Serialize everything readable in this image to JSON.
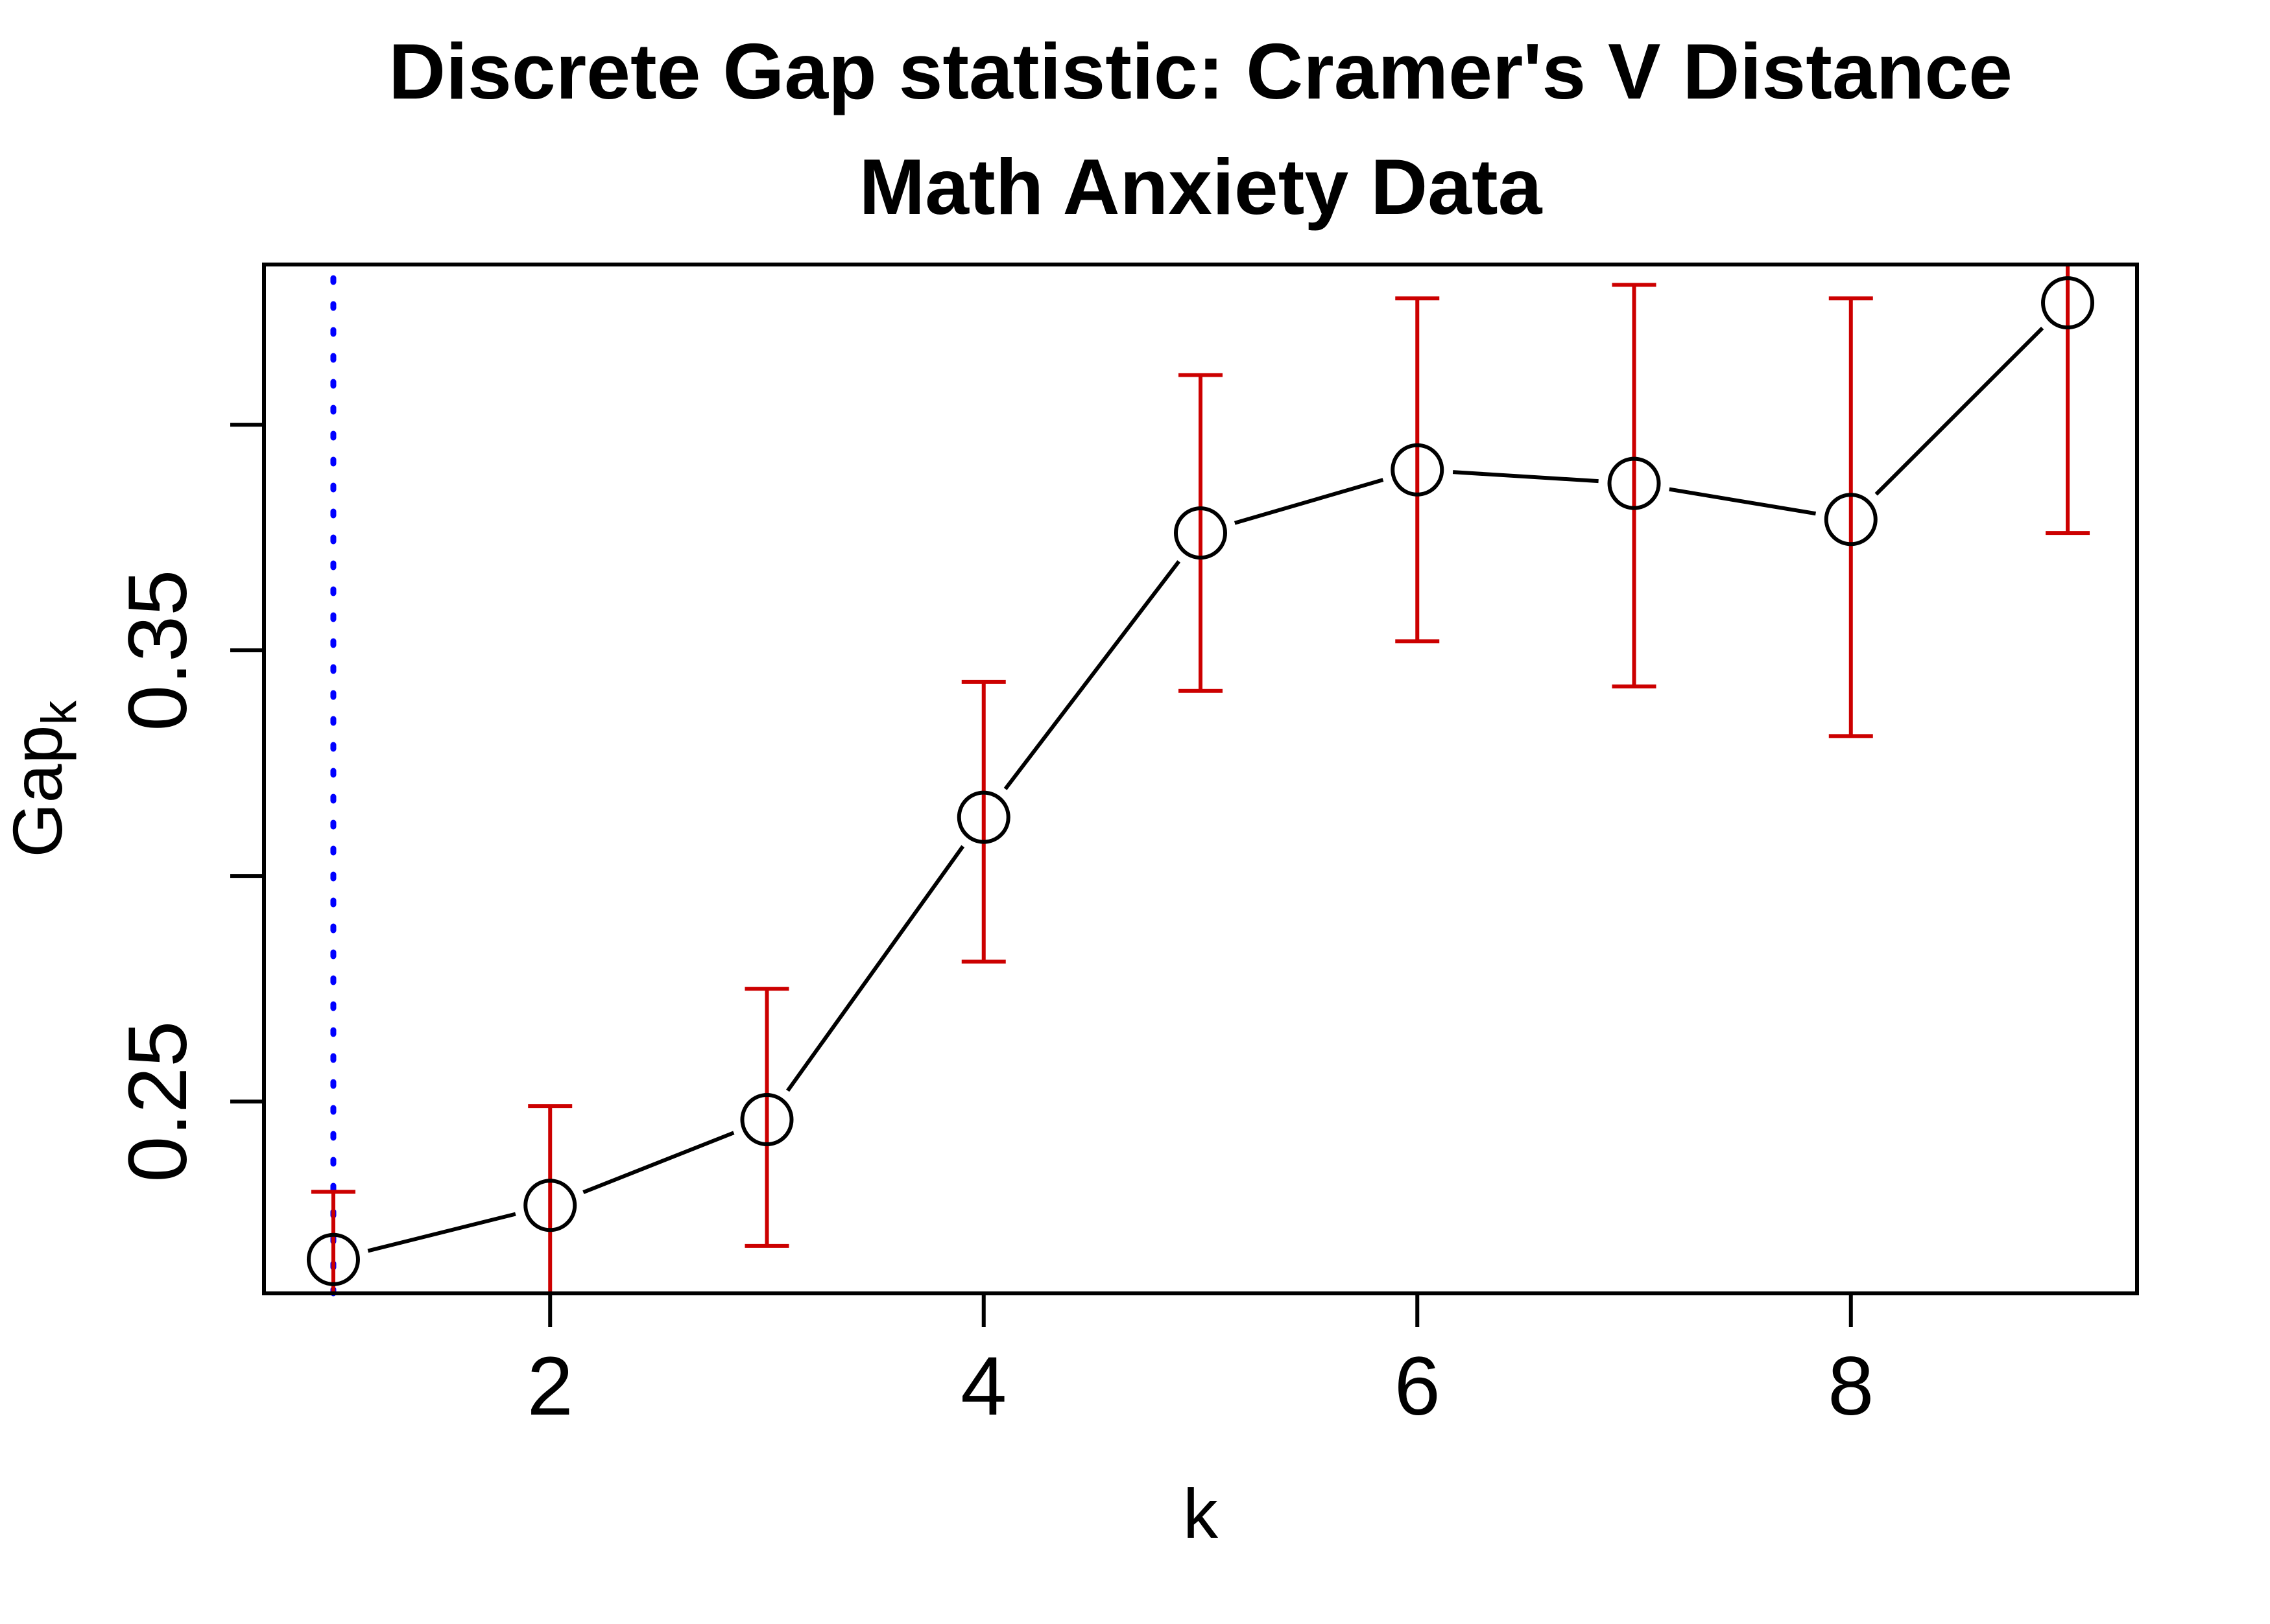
{
  "chart_data": {
    "type": "line",
    "title_line1": "Discrete Gap statistic: Cramer's V Distance",
    "title_line2": "Math Anxiety Data",
    "xlabel": "k",
    "ylabel_main": "Gap",
    "ylabel_sub": "k",
    "x": [
      1,
      2,
      3,
      4,
      5,
      6,
      7,
      8,
      9
    ],
    "series": [
      {
        "name": "Gap statistic",
        "values": [
          0.215,
          0.227,
          0.246,
          0.313,
          0.376,
          0.39,
          0.387,
          0.379,
          0.427
        ]
      }
    ],
    "error_upper": [
      0.23,
      0.249,
      0.275,
      0.343,
      0.411,
      0.428,
      0.431,
      0.428,
      0.4355
    ],
    "upper_cap_drawn": [
      true,
      true,
      true,
      true,
      true,
      true,
      true,
      true,
      false
    ],
    "error_lower": [
      0.2075,
      0.2075,
      0.218,
      0.281,
      0.341,
      0.352,
      0.342,
      0.331,
      0.376
    ],
    "lower_cap_drawn": [
      false,
      false,
      true,
      true,
      true,
      true,
      true,
      true,
      true
    ],
    "vline_x": 1,
    "x_ticks": [
      2,
      4,
      6,
      8
    ],
    "y_ticks": [
      0.25,
      0.3,
      0.35,
      0.4
    ],
    "y_tick_labels": [
      "0.25",
      "",
      "0.35",
      ""
    ],
    "xlim": [
      0.68,
      9.32
    ],
    "ylim": [
      0.2075,
      0.4355
    ],
    "grid": false,
    "legend_position": "none",
    "marker": "open-circle",
    "colors": {
      "series": "#000000",
      "error_bar": "#CC0000",
      "vline": "#0000FF",
      "text": "#000000",
      "background": "#FFFFFF"
    }
  }
}
